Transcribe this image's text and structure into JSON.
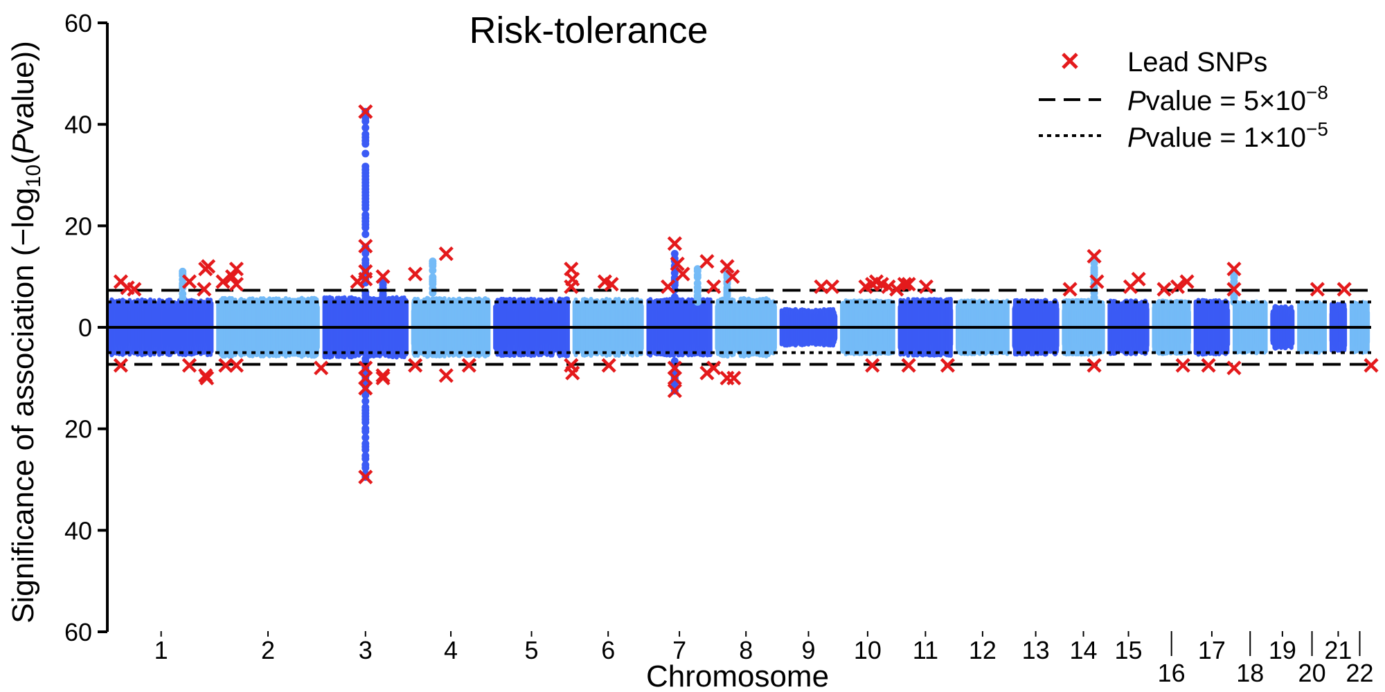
{
  "chart_data": {
    "type": "scatter",
    "title": "Risk-tolerance",
    "xlabel": "Chromosome",
    "ylabel": {
      "prefix": "Significance of association (−log",
      "sub": "10",
      "mid": "(",
      "italic": "P",
      "suffix": "value))"
    },
    "ylim": [
      -60,
      60
    ],
    "yticks": [
      {
        "value": 60,
        "label": "60"
      },
      {
        "value": 40,
        "label": "40"
      },
      {
        "value": 20,
        "label": "20"
      },
      {
        "value": 0,
        "label": "0"
      },
      {
        "value": -20,
        "label": "20"
      },
      {
        "value": -40,
        "label": "40"
      },
      {
        "value": -60,
        "label": "60"
      }
    ],
    "colors": {
      "dark": "#3b5bf5",
      "light": "#74bbf7",
      "lead": "#e41a1c",
      "lines": "#000000"
    },
    "thresholds": [
      {
        "value": 7.3,
        "style": "dashed"
      },
      {
        "value": 5.0,
        "style": "dotted"
      }
    ],
    "chromosomes": [
      {
        "label": "1",
        "start": 0,
        "end": 8.0,
        "tone": "dark",
        "amp": 5.5,
        "labelRow": 1
      },
      {
        "label": "2",
        "start": 8.0,
        "end": 15.9,
        "tone": "light",
        "amp": 5.8,
        "labelRow": 1
      },
      {
        "label": "3",
        "start": 15.9,
        "end": 22.5,
        "tone": "dark",
        "amp": 6.0,
        "labelRow": 1
      },
      {
        "label": "4",
        "start": 22.5,
        "end": 28.6,
        "tone": "light",
        "amp": 5.8,
        "labelRow": 1
      },
      {
        "label": "5",
        "start": 28.6,
        "end": 34.5,
        "tone": "dark",
        "amp": 5.7,
        "labelRow": 1
      },
      {
        "label": "6",
        "start": 34.5,
        "end": 40.0,
        "tone": "light",
        "amp": 5.6,
        "labelRow": 1
      },
      {
        "label": "7",
        "start": 40.0,
        "end": 45.1,
        "tone": "dark",
        "amp": 5.6,
        "labelRow": 1
      },
      {
        "label": "8",
        "start": 45.1,
        "end": 49.9,
        "tone": "light",
        "amp": 5.8,
        "labelRow": 1
      },
      {
        "label": "9",
        "start": 49.9,
        "end": 54.4,
        "tone": "dark",
        "amp": 3.6,
        "labelRow": 1
      },
      {
        "label": "10",
        "start": 54.4,
        "end": 58.7,
        "tone": "light",
        "amp": 5.3,
        "labelRow": 1
      },
      {
        "label": "11",
        "start": 58.7,
        "end": 63.0,
        "tone": "dark",
        "amp": 5.6,
        "labelRow": 1
      },
      {
        "label": "12",
        "start": 63.0,
        "end": 67.2,
        "tone": "light",
        "amp": 5.3,
        "labelRow": 1
      },
      {
        "label": "13",
        "start": 67.2,
        "end": 70.9,
        "tone": "dark",
        "amp": 5.4,
        "labelRow": 1
      },
      {
        "label": "14",
        "start": 70.9,
        "end": 74.3,
        "tone": "light",
        "amp": 5.4,
        "labelRow": 1
      },
      {
        "label": "15",
        "start": 74.3,
        "end": 77.6,
        "tone": "dark",
        "amp": 5.3,
        "labelRow": 1
      },
      {
        "label": "16",
        "start": 77.6,
        "end": 80.7,
        "tone": "light",
        "amp": 5.3,
        "labelRow": 2
      },
      {
        "label": "17",
        "start": 80.7,
        "end": 83.6,
        "tone": "dark",
        "amp": 5.4,
        "labelRow": 1
      },
      {
        "label": "18",
        "start": 83.6,
        "end": 86.4,
        "tone": "light",
        "amp": 5.1,
        "labelRow": 2
      },
      {
        "label": "19",
        "start": 86.4,
        "end": 88.4,
        "tone": "dark",
        "amp": 4.2,
        "labelRow": 1
      },
      {
        "label": "20",
        "start": 88.4,
        "end": 90.8,
        "tone": "light",
        "amp": 5.0,
        "labelRow": 2
      },
      {
        "label": "21",
        "start": 90.8,
        "end": 92.3,
        "tone": "dark",
        "amp": 4.6,
        "labelRow": 1
      },
      {
        "label": "22",
        "start": 92.3,
        "end": 94.0,
        "tone": "light",
        "amp": 5.0,
        "labelRow": 2
      }
    ],
    "peaks": [
      {
        "x": 19.2,
        "y": 42.5,
        "tone": "dark"
      },
      {
        "x": 19.2,
        "y": -29.5,
        "tone": "dark"
      },
      {
        "x": 5.6,
        "y": 11.0,
        "tone": "light"
      },
      {
        "x": 24.2,
        "y": 13.0,
        "tone": "light"
      },
      {
        "x": 42.2,
        "y": 14.5,
        "tone": "dark"
      },
      {
        "x": 42.2,
        "y": -12.5,
        "tone": "dark"
      },
      {
        "x": 43.9,
        "y": 11.5,
        "tone": "light"
      },
      {
        "x": 46.1,
        "y": 11.0,
        "tone": "light"
      },
      {
        "x": 73.4,
        "y": 13.5,
        "tone": "light"
      },
      {
        "x": 83.8,
        "y": 11.0,
        "tone": "light"
      },
      {
        "x": 20.5,
        "y": 9.0,
        "tone": "dark"
      }
    ],
    "lead_snps": [
      {
        "x": 1.0,
        "y": 9.0
      },
      {
        "x": 1.5,
        "y": 7.8
      },
      {
        "x": 2.0,
        "y": 7.5
      },
      {
        "x": 6.1,
        "y": 9.0
      },
      {
        "x": 7.2,
        "y": 7.5
      },
      {
        "x": 7.3,
        "y": 11.5
      },
      {
        "x": 7.5,
        "y": 12.0
      },
      {
        "x": 8.6,
        "y": 9.0
      },
      {
        "x": 9.3,
        "y": 10.0
      },
      {
        "x": 9.6,
        "y": 11.5
      },
      {
        "x": 9.6,
        "y": 8.5
      },
      {
        "x": 18.6,
        "y": 9.0
      },
      {
        "x": 19.2,
        "y": 42.5
      },
      {
        "x": 19.2,
        "y": 16.0
      },
      {
        "x": 19.2,
        "y": 11.0
      },
      {
        "x": 19.2,
        "y": 9.5
      },
      {
        "x": 20.5,
        "y": 10.0
      },
      {
        "x": 22.9,
        "y": 10.5
      },
      {
        "x": 25.2,
        "y": 14.5
      },
      {
        "x": 34.5,
        "y": 11.5
      },
      {
        "x": 34.6,
        "y": 9.5
      },
      {
        "x": 34.5,
        "y": 8.0
      },
      {
        "x": 37.0,
        "y": 9.0
      },
      {
        "x": 37.5,
        "y": 8.5
      },
      {
        "x": 41.7,
        "y": 8.0
      },
      {
        "x": 42.2,
        "y": 16.5
      },
      {
        "x": 42.4,
        "y": 12.5
      },
      {
        "x": 42.8,
        "y": 10.5
      },
      {
        "x": 44.6,
        "y": 13.0
      },
      {
        "x": 45.1,
        "y": 8.0
      },
      {
        "x": 46.1,
        "y": 12.0
      },
      {
        "x": 46.5,
        "y": 10.0
      },
      {
        "x": 53.1,
        "y": 8.0
      },
      {
        "x": 53.9,
        "y": 8.0
      },
      {
        "x": 56.4,
        "y": 8.0
      },
      {
        "x": 56.9,
        "y": 8.5
      },
      {
        "x": 57.2,
        "y": 9.0
      },
      {
        "x": 57.6,
        "y": 8.5
      },
      {
        "x": 58.1,
        "y": 8.0
      },
      {
        "x": 58.7,
        "y": 7.5
      },
      {
        "x": 59.3,
        "y": 8.5
      },
      {
        "x": 59.6,
        "y": 8.5
      },
      {
        "x": 60.9,
        "y": 8.0
      },
      {
        "x": 71.6,
        "y": 7.5
      },
      {
        "x": 73.4,
        "y": 14.0
      },
      {
        "x": 73.6,
        "y": 9.0
      },
      {
        "x": 76.1,
        "y": 8.0
      },
      {
        "x": 76.7,
        "y": 9.5
      },
      {
        "x": 78.6,
        "y": 7.5
      },
      {
        "x": 79.6,
        "y": 8.0
      },
      {
        "x": 80.3,
        "y": 9.0
      },
      {
        "x": 83.8,
        "y": 11.5
      },
      {
        "x": 83.8,
        "y": 7.5
      },
      {
        "x": 90.0,
        "y": 7.5
      },
      {
        "x": 92.0,
        "y": 7.5
      },
      {
        "x": 1.0,
        "y": -7.5
      },
      {
        "x": 6.1,
        "y": -7.5
      },
      {
        "x": 7.3,
        "y": -9.5
      },
      {
        "x": 7.4,
        "y": -10.0
      },
      {
        "x": 8.8,
        "y": -7.5
      },
      {
        "x": 9.6,
        "y": -7.5
      },
      {
        "x": 15.9,
        "y": -8.0
      },
      {
        "x": 19.2,
        "y": -8.0
      },
      {
        "x": 19.2,
        "y": -10.0
      },
      {
        "x": 19.2,
        "y": -12.0
      },
      {
        "x": 19.2,
        "y": -29.5
      },
      {
        "x": 20.5,
        "y": -9.5
      },
      {
        "x": 20.5,
        "y": -10.0
      },
      {
        "x": 22.9,
        "y": -7.5
      },
      {
        "x": 25.2,
        "y": -9.5
      },
      {
        "x": 26.9,
        "y": -7.5
      },
      {
        "x": 34.5,
        "y": -7.5
      },
      {
        "x": 34.6,
        "y": -9.0
      },
      {
        "x": 37.3,
        "y": -7.5
      },
      {
        "x": 42.2,
        "y": -8.0
      },
      {
        "x": 42.2,
        "y": -10.0
      },
      {
        "x": 42.2,
        "y": -12.5
      },
      {
        "x": 44.6,
        "y": -9.0
      },
      {
        "x": 45.1,
        "y": -8.0
      },
      {
        "x": 46.1,
        "y": -10.0
      },
      {
        "x": 46.6,
        "y": -10.0
      },
      {
        "x": 56.9,
        "y": -7.5
      },
      {
        "x": 59.6,
        "y": -7.5
      },
      {
        "x": 62.5,
        "y": -7.5
      },
      {
        "x": 73.4,
        "y": -7.5
      },
      {
        "x": 80.0,
        "y": -7.5
      },
      {
        "x": 81.9,
        "y": -7.5
      },
      {
        "x": 83.8,
        "y": -8.0
      },
      {
        "x": 94.0,
        "y": -7.5
      }
    ],
    "legend": {
      "position": "top-right",
      "lead": "Lead SNPs",
      "line1": {
        "italic": "P",
        "text": "value = 5×10",
        "exp": "−8"
      },
      "line2": {
        "italic": "P",
        "text": "value = 1×10",
        "exp": "−5"
      }
    }
  }
}
